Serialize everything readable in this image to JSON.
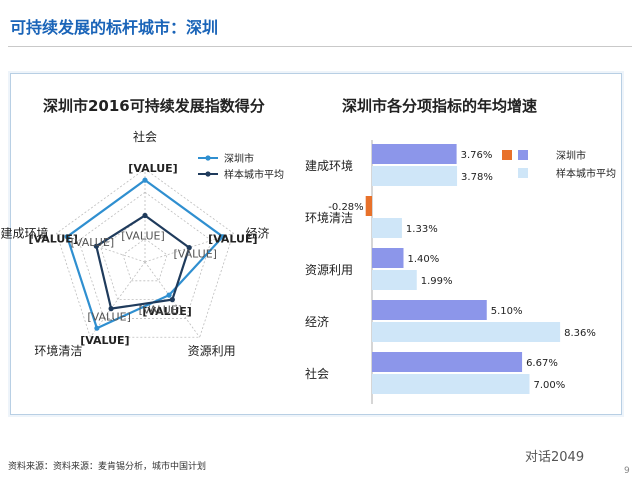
{
  "page": {
    "title": "可持续发展的标杆城市：深圳",
    "source": "资料来源：资料来源：麦肯锡分析，城市中国计划",
    "watermark": "对话2049",
    "page_number": "9"
  },
  "colors": {
    "title": "#1a64b8",
    "radar_city": "#2f8fd0",
    "radar_avg": "#1f3b5c",
    "bar_city": "#8c96ea",
    "bar_avg": "#cfe6f8",
    "bar_negative": "#e8712a"
  },
  "chart_data": [
    {
      "type": "radar",
      "title": "深圳市2016可持续发展指数得分",
      "axes": [
        "社会",
        "经济",
        "资源利用",
        "环境清洁",
        "建成环境"
      ],
      "series": [
        {
          "name": "深圳市",
          "values": [
            0.88,
            0.88,
            0.44,
            0.88,
            0.88
          ],
          "labels": [
            "[VALUE]",
            "[VALUE]",
            "[VALUE]",
            "[VALUE]",
            "[VALUE]"
          ]
        },
        {
          "name": "样本城市平均",
          "values": [
            0.5,
            0.5,
            0.5,
            0.62,
            0.55
          ],
          "labels": [
            "[VALUE]",
            "[VALUE]",
            "[VALUE]",
            "[VALUE]",
            "[VALUE]"
          ]
        }
      ],
      "legend_position": "top-right"
    },
    {
      "type": "bar",
      "orientation": "horizontal",
      "title": "深圳市各分项指标的年均增速",
      "categories": [
        "建成环境",
        "环境清洁",
        "资源利用",
        "经济",
        "社会"
      ],
      "series": [
        {
          "name": "深圳市",
          "values": [
            3.76,
            -0.28,
            1.4,
            5.1,
            6.67
          ],
          "labels": [
            "3.76%",
            "-0.28%",
            "1.40%",
            "5.10%",
            "6.67%"
          ]
        },
        {
          "name": "样本城市平均",
          "values": [
            3.78,
            1.33,
            1.99,
            8.36,
            7.0
          ],
          "labels": [
            "3.78%",
            "1.33%",
            "1.99%",
            "8.36%",
            "7.00%"
          ]
        }
      ],
      "legend_position": "top-right"
    }
  ]
}
